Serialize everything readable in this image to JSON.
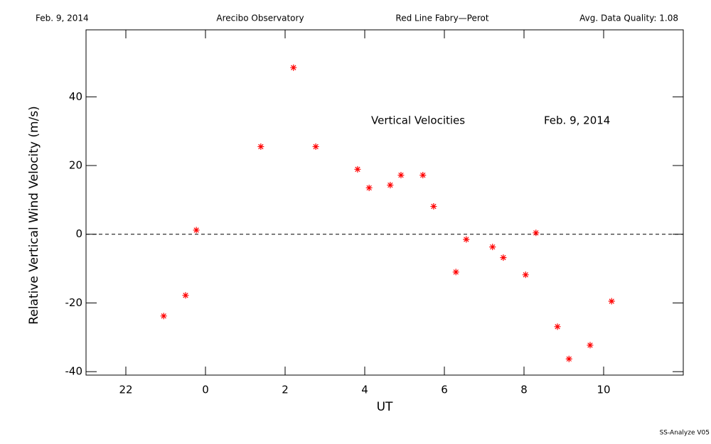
{
  "chart_data": {
    "type": "scatter",
    "header": [
      "Feb. 9, 2014",
      "Arecibo Observatory",
      "Red Line Fabry—Perot",
      "Avg. Data Quality: 1.08"
    ],
    "annotations": [
      "Vertical Velocities",
      "Feb. 9, 2014"
    ],
    "footer": "SS-Analyze V05",
    "xlabel": "UT",
    "ylabel": "Relative Vertical Wind Velocity (m/s)",
    "xlim": [
      -3,
      12
    ],
    "ylim": [
      -41,
      59.5
    ],
    "xticks": [
      {
        "value": -2,
        "label": "22"
      },
      0,
      2,
      4,
      6,
      8,
      10
    ],
    "yticks": [
      -40,
      -20,
      0,
      20,
      40
    ],
    "hline": 0,
    "color": "#ff0000",
    "x": [
      -1.05,
      -0.5,
      -0.23,
      1.39,
      2.21,
      2.77,
      3.82,
      4.11,
      4.64,
      4.91,
      5.46,
      5.73,
      6.29,
      6.55,
      7.21,
      7.48,
      8.04,
      8.3,
      8.84,
      9.13,
      9.66,
      10.2
    ],
    "values": [
      -23.8,
      -17.8,
      1.2,
      25.5,
      48.5,
      25.5,
      18.9,
      13.5,
      14.3,
      17.2,
      17.2,
      8.1,
      -11.0,
      -1.5,
      -3.7,
      -6.8,
      -11.8,
      0.4,
      -26.9,
      -36.3,
      -32.3,
      -19.5
    ]
  }
}
